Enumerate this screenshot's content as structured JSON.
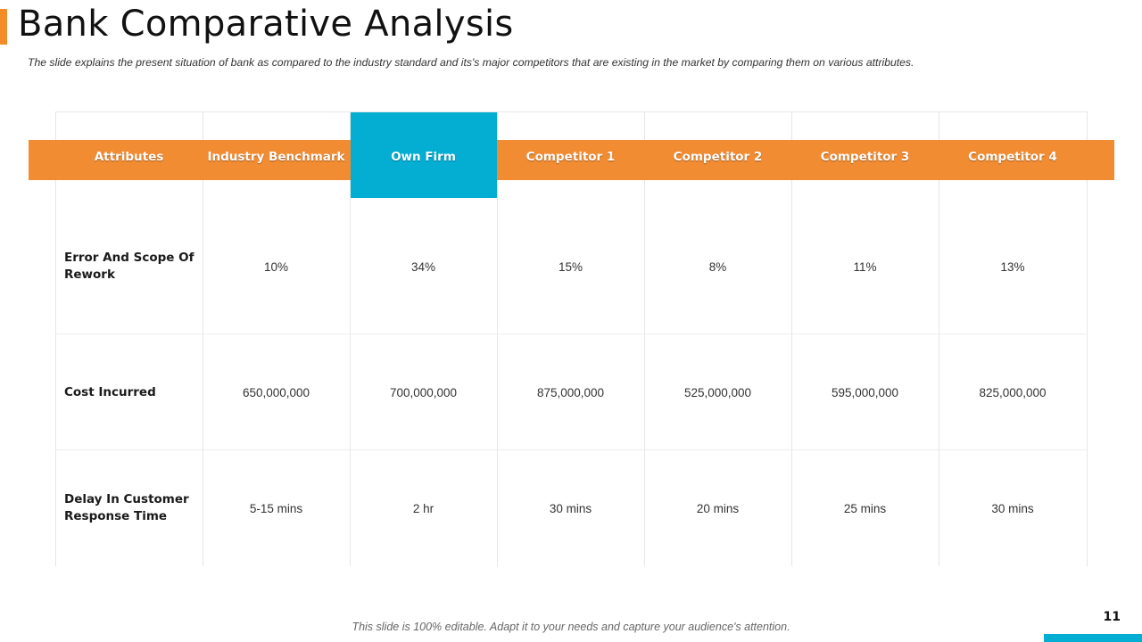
{
  "slide": {
    "title": "Bank Comparative Analysis",
    "subtitle": "The slide explains the present situation of bank as compared to the industry standard and its's major competitors that are existing in the market by comparing them on various attributes.",
    "footer_note": "This slide is 100% editable. Adapt it to your needs and capture your audience's attention.",
    "page_number": "11"
  },
  "colors": {
    "accent": "#f28c33",
    "highlight": "#03aed2"
  },
  "table": {
    "headers": [
      "Attributes",
      "Industry Benchmark",
      "Own Firm",
      "Competitor 1",
      "Competitor 2",
      "Competitor 3",
      "Competitor 4"
    ],
    "rows": [
      {
        "attribute": "Error And Scope Of Rework",
        "values": [
          "10%",
          "34%",
          "15%",
          "8%",
          "11%",
          "13%"
        ]
      },
      {
        "attribute": "Cost Incurred",
        "values": [
          "650,000,000",
          "700,000,000",
          "875,000,000",
          "525,000,000",
          "595,000,000",
          "825,000,000"
        ]
      },
      {
        "attribute": "Delay In Customer Response Time",
        "values": [
          "5-15 mins",
          "2 hr",
          "30 mins",
          "20 mins",
          "25 mins",
          "30 mins"
        ]
      }
    ]
  }
}
